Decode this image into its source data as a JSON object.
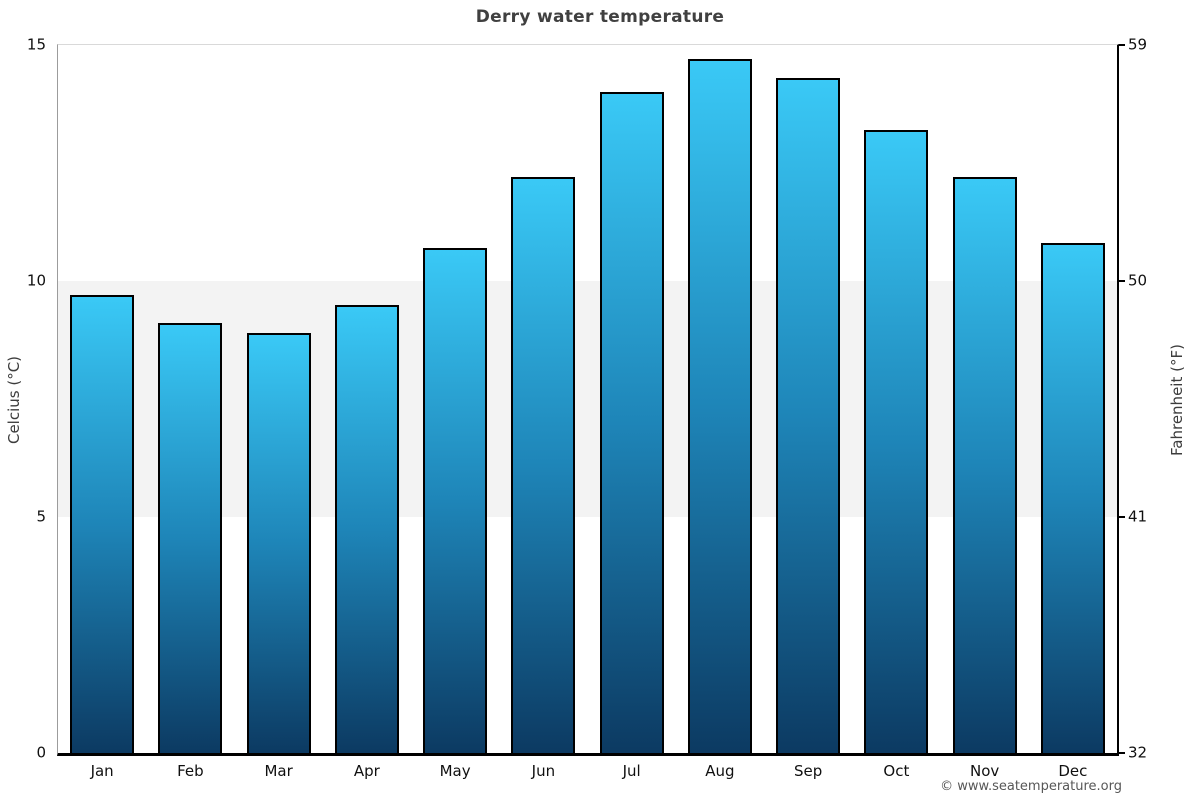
{
  "footer": {
    "copyright": "© www.seatemperature.org"
  },
  "chart_data": {
    "type": "bar",
    "title": "Derry water temperature",
    "categories": [
      "Jan",
      "Feb",
      "Mar",
      "Apr",
      "May",
      "Jun",
      "Jul",
      "Aug",
      "Sep",
      "Oct",
      "Nov",
      "Dec"
    ],
    "values": [
      9.7,
      9.1,
      8.9,
      9.5,
      10.7,
      12.2,
      14.0,
      14.7,
      14.3,
      13.2,
      12.2,
      10.8
    ],
    "unit": "°C",
    "ylabel_left": "Celcius (°C)",
    "ylabel_right": "Fahrenheit (°F)",
    "ylim": [
      0,
      15
    ],
    "yticks_left": [
      0,
      5,
      10,
      15
    ],
    "yticks_right": [
      32,
      41,
      50,
      59
    ],
    "grid_band": {
      "from": 5,
      "to": 10,
      "color": "#f3f3f3"
    },
    "legend": "none",
    "colors": {
      "bar_top": "#3ac9f6",
      "bar_mid": "#1e85b8",
      "bar_bottom": "#0c3a62",
      "bar_border": "#000000",
      "title_text": "#404040",
      "tick_text": "#101010",
      "axis_title_text": "#3c3c3c",
      "footer_text": "#575757"
    }
  }
}
